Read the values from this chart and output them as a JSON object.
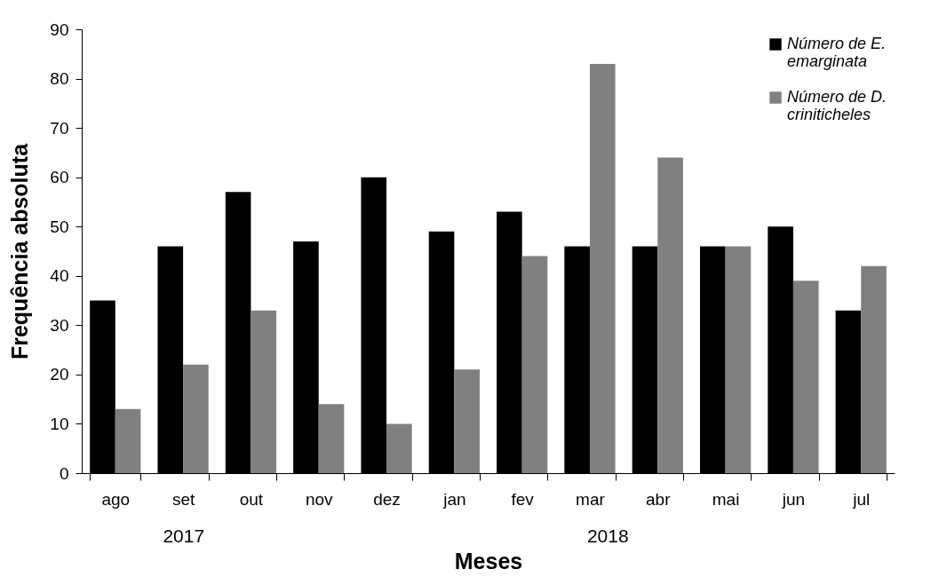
{
  "chart_data": {
    "type": "bar",
    "xlabel": "Meses",
    "ylabel": "Frequência absoluta",
    "categories": [
      "ago",
      "set",
      "out",
      "nov",
      "dez",
      "jan",
      "fev",
      "mar",
      "abr",
      "mai",
      "jun",
      "jul"
    ],
    "series": [
      {
        "name": "Número de E. emarginata",
        "color": "#000000",
        "values": [
          35,
          46,
          57,
          47,
          60,
          49,
          53,
          46,
          46,
          46,
          50,
          33
        ]
      },
      {
        "name": "Número de D. criniticheles",
        "color": "#808080",
        "values": [
          13,
          22,
          33,
          14,
          10,
          21,
          44,
          83,
          64,
          46,
          39,
          42
        ]
      }
    ],
    "ylim": [
      0,
      90
    ],
    "yticks": [
      0,
      10,
      20,
      30,
      40,
      50,
      60,
      70,
      80,
      90
    ],
    "grid": false,
    "legend": "top right",
    "annotations": [
      "2017",
      "2018"
    ]
  }
}
